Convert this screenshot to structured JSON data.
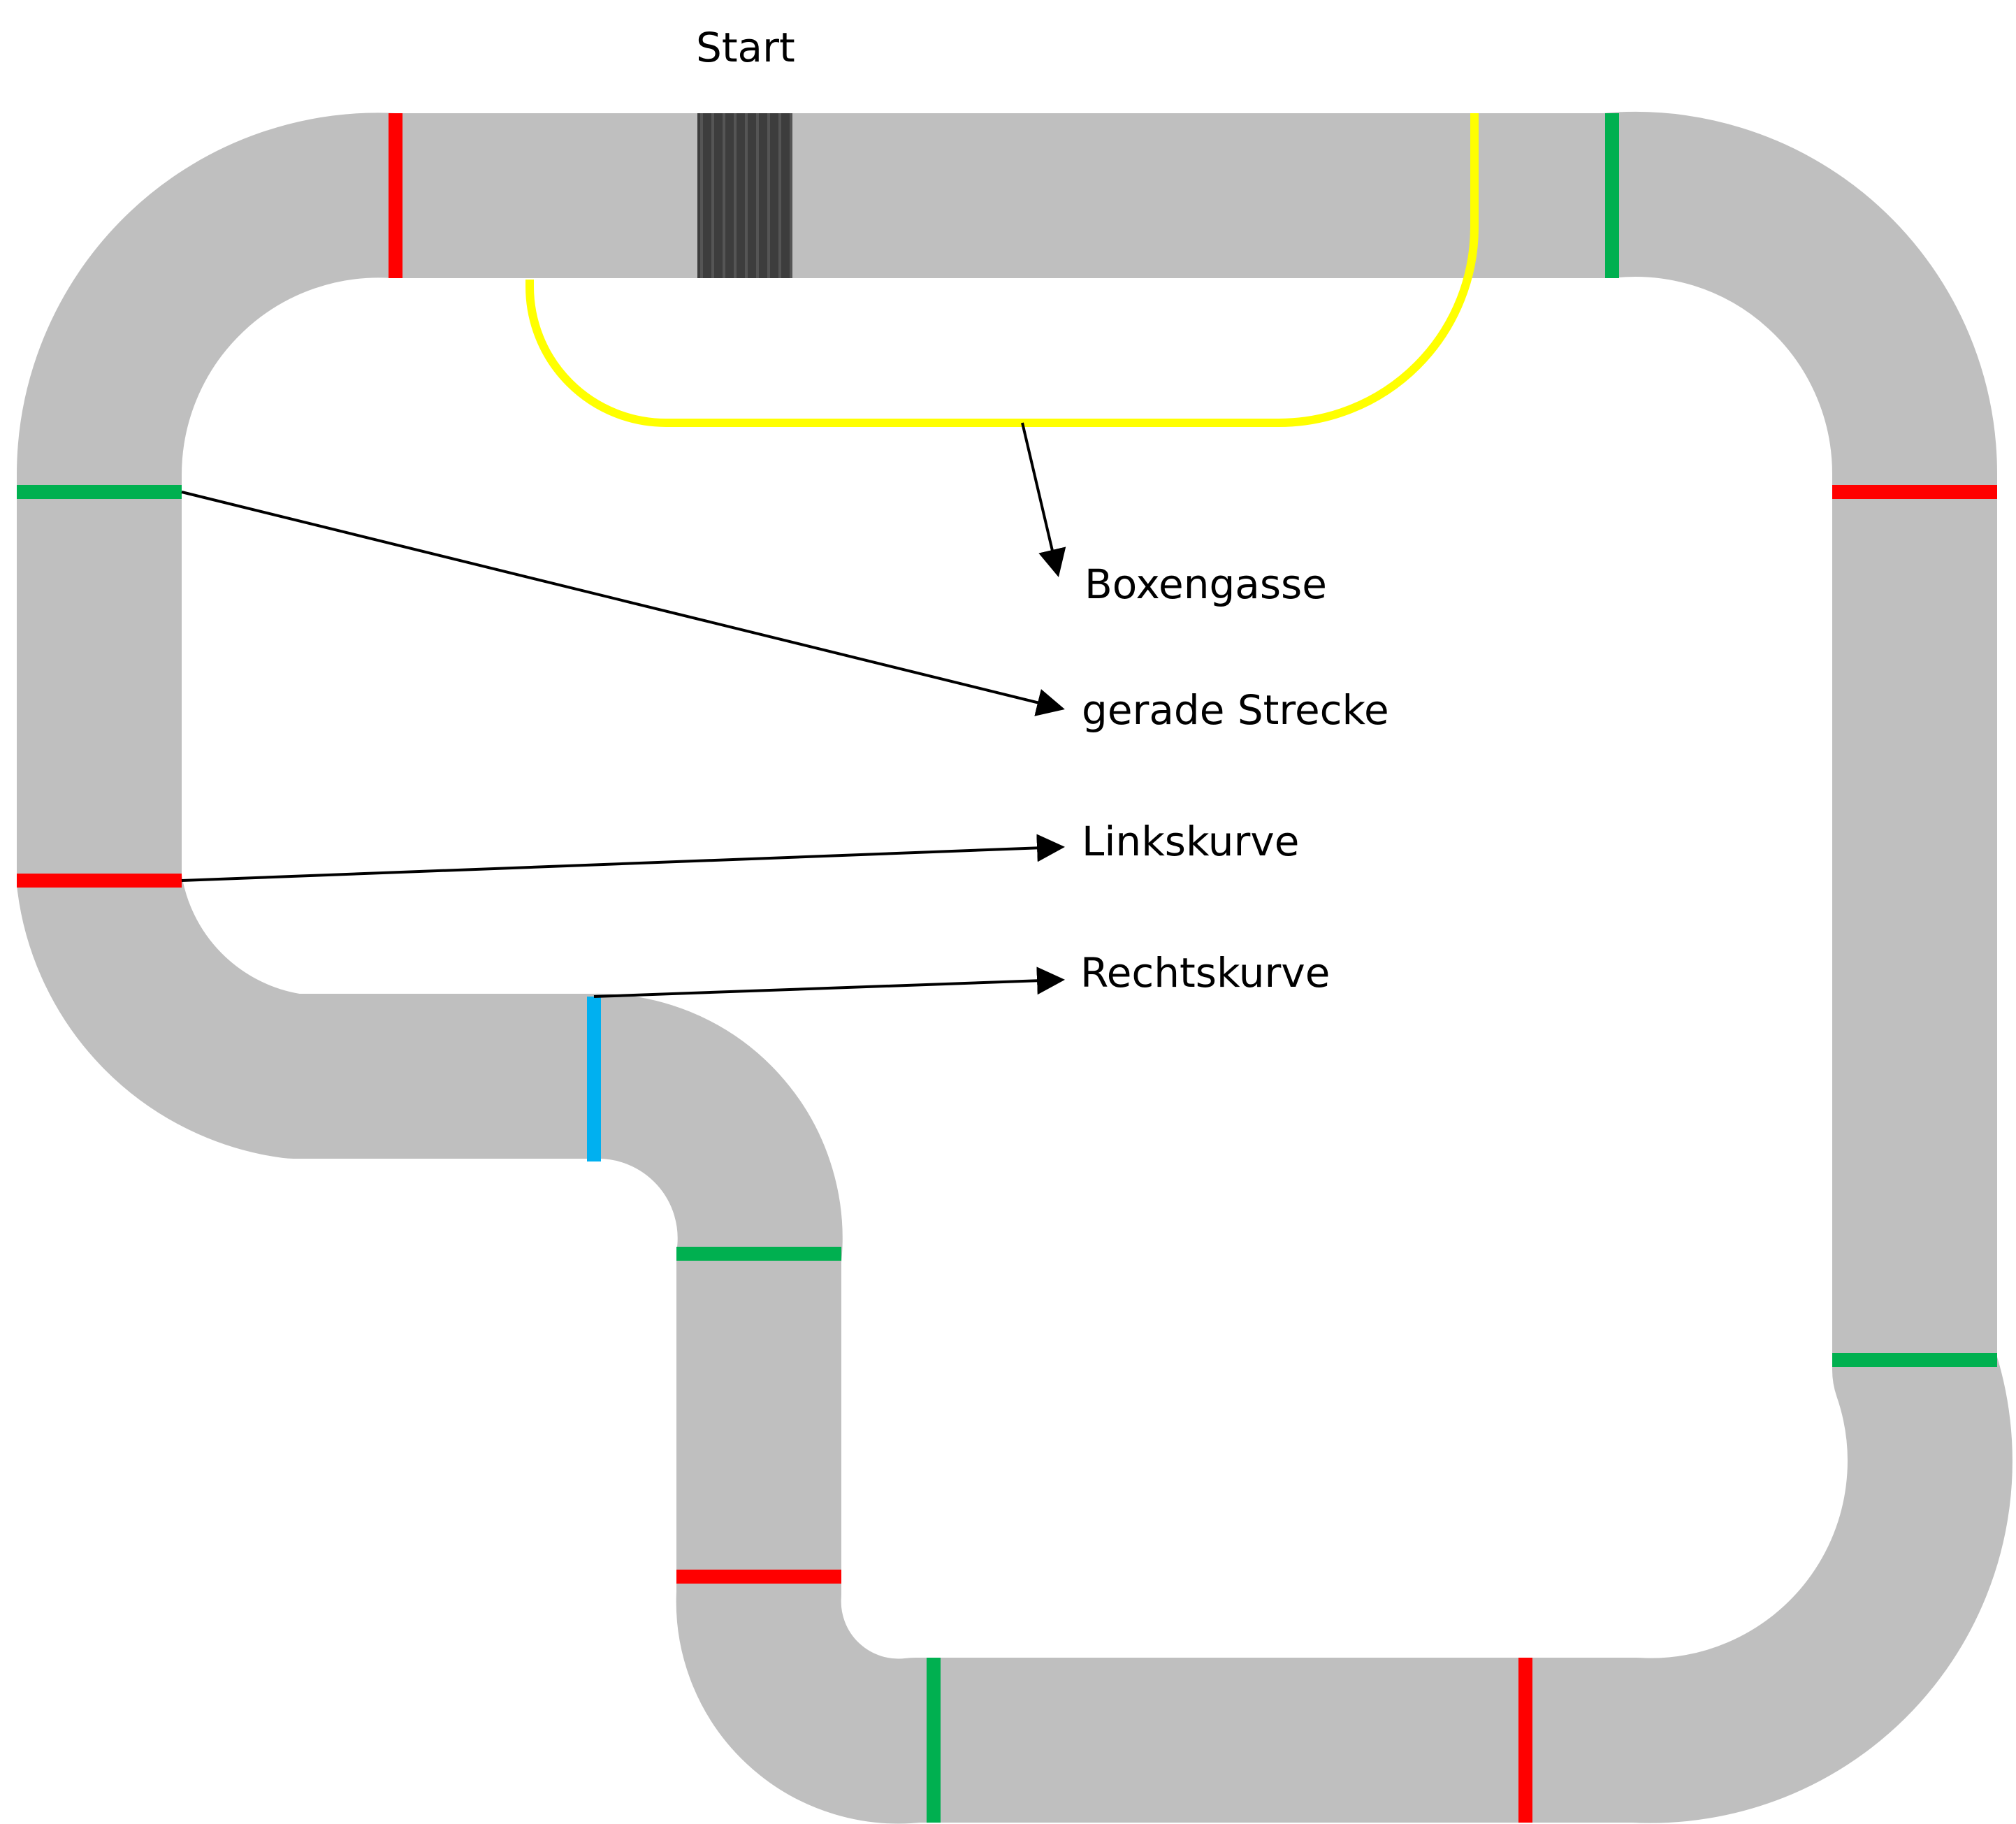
{
  "labels": {
    "start": "Start",
    "pit_lane": "Boxengasse",
    "straight": "gerade Strecke",
    "left_curve": "Linkskurve",
    "right_curve": "Rechtskurve"
  },
  "colors": {
    "track": "#bfbfbf",
    "start_grid": "#3f3f3f",
    "pit_lane": "#ffff00",
    "straight_marker": "#00b050",
    "left_curve_marker": "#ff0000",
    "right_curve_marker": "#00b0f0",
    "arrow": "#000000"
  }
}
